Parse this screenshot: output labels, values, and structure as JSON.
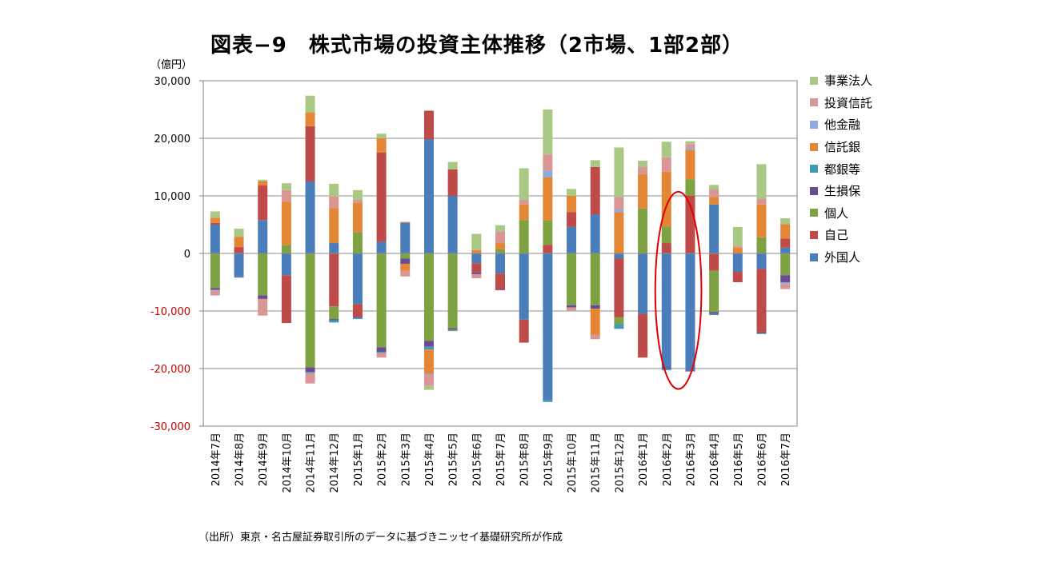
{
  "title": "図表−9　株式市場の投資主体推移（2市場、1部2部）",
  "unit_label": "（億円）",
  "source": "（出所）東京・名古屋証券取引所のデータに基づきニッセイ基礎研究所が作成",
  "colors": {
    "外国人": "#4a7ebb",
    "自己": "#be4b48",
    "個人": "#7ea142",
    "生損保": "#6a4c93",
    "都銀等": "#3f9ab3",
    "信託銀": "#e38737",
    "他金融": "#8ea9db",
    "投資信託": "#d99694",
    "事業法人": "#a9c884",
    "negative_tick": "#c00000",
    "highlight": "#e00000"
  },
  "legend": [
    "事業法人",
    "投資信託",
    "他金融",
    "信託銀",
    "都銀等",
    "生損保",
    "個人",
    "自己",
    "外国人"
  ],
  "chart_data": {
    "type": "bar",
    "stacked": true,
    "ylim": [
      -30000,
      30000
    ],
    "yticks": [
      "30,000",
      "20,000",
      "10,000",
      "0",
      "-10,000",
      "-20,000",
      "-30,000"
    ],
    "ytick_values": [
      30000,
      20000,
      10000,
      0,
      -10000,
      -20000,
      -30000
    ],
    "grid": true,
    "categories": [
      "2014年7月",
      "2014年8月",
      "2014年9月",
      "2014年10月",
      "2014年11月",
      "2014年12月",
      "2015年1月",
      "2015年2月",
      "2015年3月",
      "2015年4月",
      "2015年5月",
      "2015年6月",
      "2015年7月",
      "2015年8月",
      "2015年9月",
      "2015年10月",
      "2015年11月",
      "2015年12月",
      "2016年1月",
      "2016年2月",
      "2016年3月",
      "2016年4月",
      "2016年5月",
      "2016年6月",
      "2016年7月"
    ],
    "series": [
      {
        "name": "外国人",
        "values": [
          5000,
          -4000,
          5800,
          -3800,
          12500,
          1800,
          -8800,
          2000,
          5300,
          19800,
          10000,
          -1700,
          -3500,
          -11500,
          -25500,
          4600,
          6800,
          -900,
          -10500,
          -19800,
          -20300,
          8500,
          -3200,
          -2700,
          1000
        ]
      },
      {
        "name": "自己",
        "values": [
          300,
          1100,
          6000,
          -8300,
          9600,
          -9200,
          -2200,
          15500,
          100,
          5000,
          4600,
          -1600,
          -2800,
          -4000,
          1500,
          2600,
          8200,
          -10200,
          -7600,
          1800,
          10100,
          -3000,
          -1800,
          -11000,
          1600
        ]
      },
      {
        "name": "個人",
        "values": [
          -6000,
          0,
          -7300,
          1500,
          -19800,
          -2200,
          3700,
          -16300,
          -900,
          -15200,
          -13000,
          0,
          700,
          5800,
          4200,
          -9000,
          -9000,
          -1200,
          7800,
          2900,
          2800,
          -7200,
          0,
          2800,
          -3800
        ]
      },
      {
        "name": "生損保",
        "values": [
          -300,
          -100,
          -600,
          0,
          -800,
          -200,
          -200,
          -800,
          -900,
          -1000,
          -200,
          -300,
          -100,
          0,
          0,
          -400,
          -600,
          0,
          0,
          -200,
          -200,
          -300,
          0,
          -200,
          -1200
        ]
      },
      {
        "name": "都銀等",
        "values": [
          -100,
          -100,
          0,
          0,
          -200,
          -400,
          -200,
          -200,
          0,
          -500,
          -200,
          0,
          0,
          0,
          -300,
          0,
          0,
          -800,
          0,
          -300,
          0,
          -200,
          0,
          -100,
          0
        ]
      },
      {
        "name": "信託銀",
        "values": [
          900,
          1800,
          700,
          7500,
          2400,
          6100,
          5100,
          2500,
          -1200,
          -4200,
          -100,
          600,
          1100,
          2700,
          7500,
          2800,
          -4500,
          7200,
          6000,
          9500,
          5100,
          1300,
          1000,
          5700,
          2500
        ]
      },
      {
        "name": "他金融",
        "values": [
          0,
          0,
          0,
          0,
          0,
          0,
          0,
          0,
          0,
          -200,
          0,
          0,
          0,
          0,
          1200,
          0,
          0,
          500,
          0,
          0,
          300,
          0,
          0,
          0,
          -300
        ]
      },
      {
        "name": "投資信託",
        "values": [
          -900,
          0,
          -2900,
          2000,
          -1800,
          2000,
          500,
          -800,
          -1000,
          -1900,
          0,
          -700,
          2000,
          800,
          2800,
          -500,
          -800,
          2100,
          1200,
          2500,
          700,
          1300,
          300,
          1000,
          -900
        ]
      },
      {
        "name": "事業法人",
        "values": [
          1100,
          1400,
          300,
          1200,
          2900,
          2200,
          1700,
          800,
          100,
          -700,
          1300,
          2800,
          1100,
          5500,
          7800,
          1200,
          1200,
          8600,
          1100,
          2700,
          500,
          800,
          3300,
          6000,
          1000
        ]
      }
    ],
    "highlight": [
      "2016年2月",
      "2016年3月"
    ]
  }
}
